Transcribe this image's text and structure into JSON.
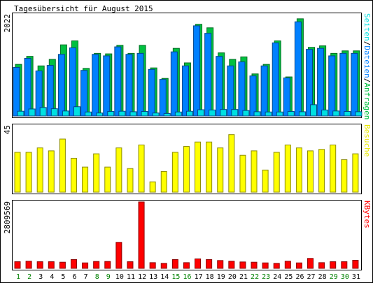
{
  "title": "Tagesübersicht für August 2015",
  "chart_data": [
    {
      "type": "bar",
      "panel": "hits",
      "ymax_label": "2022",
      "ylim": [
        0,
        2022
      ],
      "vertical_label": {
        "parts": [
          {
            "text": "Seiten",
            "color": "#00e0e0"
          },
          {
            "text": "/",
            "color": "#000000"
          },
          {
            "text": "Dateien",
            "color": "#0080ff"
          },
          {
            "text": "/",
            "color": "#000000"
          },
          {
            "text": "Anfragen",
            "color": "#00c040"
          }
        ]
      },
      "series": [
        {
          "name": "Anfragen",
          "color": "#00c040",
          "values": [
            1030,
            1190,
            1000,
            1130,
            1420,
            1500,
            950,
            1250,
            1240,
            1410,
            1250,
            1410,
            960,
            750,
            1350,
            1060,
            1830,
            1760,
            1260,
            1130,
            1180,
            840,
            1030,
            1500,
            780,
            1940,
            1370,
            1400,
            1250,
            1300,
            1300
          ]
        },
        {
          "name": "Dateien",
          "color": "#0080ff",
          "values": [
            970,
            1150,
            900,
            1010,
            1230,
            1360,
            910,
            1230,
            1200,
            1380,
            1230,
            1250,
            930,
            730,
            1280,
            1000,
            1800,
            1650,
            1190,
            1000,
            1080,
            800,
            1000,
            1460,
            760,
            1880,
            1330,
            1350,
            1200,
            1250,
            1250
          ]
        },
        {
          "name": "Seiten",
          "color": "#00e0e0",
          "values": [
            95,
            140,
            170,
            145,
            100,
            185,
            80,
            60,
            90,
            95,
            85,
            90,
            60,
            50,
            80,
            95,
            125,
            120,
            130,
            130,
            110,
            85,
            80,
            80,
            90,
            85,
            225,
            120,
            100,
            90,
            85
          ]
        }
      ]
    },
    {
      "type": "bar",
      "panel": "visits",
      "ymax_label": "45",
      "ylim": [
        0,
        45
      ],
      "vertical_label": {
        "parts": [
          {
            "text": "Besuche",
            "color": "#e8e800"
          }
        ]
      },
      "series": [
        {
          "name": "Besuche",
          "color": "#ffff00",
          "values": [
            27,
            27,
            30,
            28,
            36,
            23,
            17,
            26,
            17,
            30,
            16,
            32,
            7,
            14,
            27,
            31,
            34,
            34,
            30,
            39,
            25,
            28,
            15,
            27,
            32,
            30,
            28,
            29,
            32,
            22,
            26
          ]
        }
      ]
    },
    {
      "type": "bar",
      "panel": "kbytes",
      "ymax_label": "2809569",
      "ylim": [
        0,
        2809569
      ],
      "vertical_label": {
        "parts": [
          {
            "text": "KBytes",
            "color": "#ff0000"
          }
        ]
      },
      "series": [
        {
          "name": "KBytes",
          "color": "#ff0000",
          "values": [
            280000,
            300000,
            280000,
            280000,
            260000,
            370000,
            230000,
            290000,
            290000,
            1100000,
            280000,
            2809569,
            240000,
            210000,
            370000,
            240000,
            400000,
            370000,
            330000,
            300000,
            270000,
            260000,
            230000,
            210000,
            300000,
            230000,
            420000,
            240000,
            280000,
            280000,
            340000
          ]
        }
      ]
    }
  ],
  "days": [
    {
      "label": "1",
      "color": "#008000"
    },
    {
      "label": "2",
      "color": "#008000"
    },
    {
      "label": "3",
      "color": "#000000"
    },
    {
      "label": "4",
      "color": "#000000"
    },
    {
      "label": "5",
      "color": "#000000"
    },
    {
      "label": "6",
      "color": "#000000"
    },
    {
      "label": "7",
      "color": "#000000"
    },
    {
      "label": "8",
      "color": "#008000"
    },
    {
      "label": "9",
      "color": "#008000"
    },
    {
      "label": "10",
      "color": "#000000"
    },
    {
      "label": "11",
      "color": "#000000"
    },
    {
      "label": "12",
      "color": "#000000"
    },
    {
      "label": "13",
      "color": "#000000"
    },
    {
      "label": "14",
      "color": "#000000"
    },
    {
      "label": "15",
      "color": "#008000"
    },
    {
      "label": "16",
      "color": "#008000"
    },
    {
      "label": "17",
      "color": "#000000"
    },
    {
      "label": "18",
      "color": "#000000"
    },
    {
      "label": "19",
      "color": "#000000"
    },
    {
      "label": "20",
      "color": "#000000"
    },
    {
      "label": "21",
      "color": "#000000"
    },
    {
      "label": "22",
      "color": "#008000"
    },
    {
      "label": "23",
      "color": "#008000"
    },
    {
      "label": "24",
      "color": "#000000"
    },
    {
      "label": "25",
      "color": "#000000"
    },
    {
      "label": "26",
      "color": "#000000"
    },
    {
      "label": "27",
      "color": "#000000"
    },
    {
      "label": "28",
      "color": "#000000"
    },
    {
      "label": "29",
      "color": "#008000"
    },
    {
      "label": "30",
      "color": "#008000"
    },
    {
      "label": "31",
      "color": "#000000"
    }
  ]
}
